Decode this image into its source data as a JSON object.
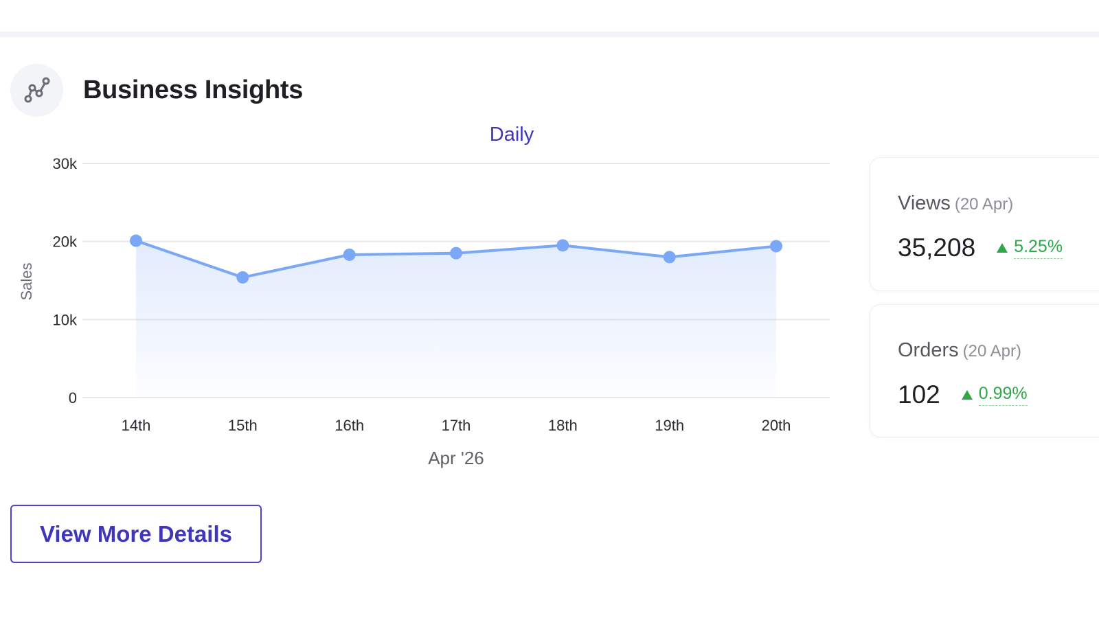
{
  "header": {
    "title": "Business Insights",
    "icon": "line-chart-icon"
  },
  "chart": {
    "period_label": "Daily"
  },
  "chart_data": {
    "type": "area",
    "categories": [
      "14th",
      "15th",
      "16th",
      "17th",
      "18th",
      "19th",
      "20th"
    ],
    "values": [
      20100,
      15400,
      18300,
      18500,
      19500,
      18000,
      19400
    ],
    "ylabel": "Sales",
    "xlabel": "Apr '26",
    "ylim": [
      0,
      30000
    ],
    "yticks": [
      {
        "value": 0,
        "label": "0"
      },
      {
        "value": 10000,
        "label": "10k"
      },
      {
        "value": 20000,
        "label": "20k"
      },
      {
        "value": 30000,
        "label": "30k"
      }
    ],
    "grid": true,
    "color": "#7ba7f7"
  },
  "stats": [
    {
      "name": "Views",
      "date": "(20 Apr)",
      "value": "35,208",
      "change": "5.25%",
      "trend": "up"
    },
    {
      "name": "Orders",
      "date": "(20 Apr)",
      "value": "102",
      "change": "0.99%",
      "trend": "up"
    }
  ],
  "actions": {
    "view_more_label": "View More Details"
  },
  "colors": {
    "accent": "#3f36b8",
    "positive": "#2fa84a",
    "line": "#7ba7f7"
  }
}
